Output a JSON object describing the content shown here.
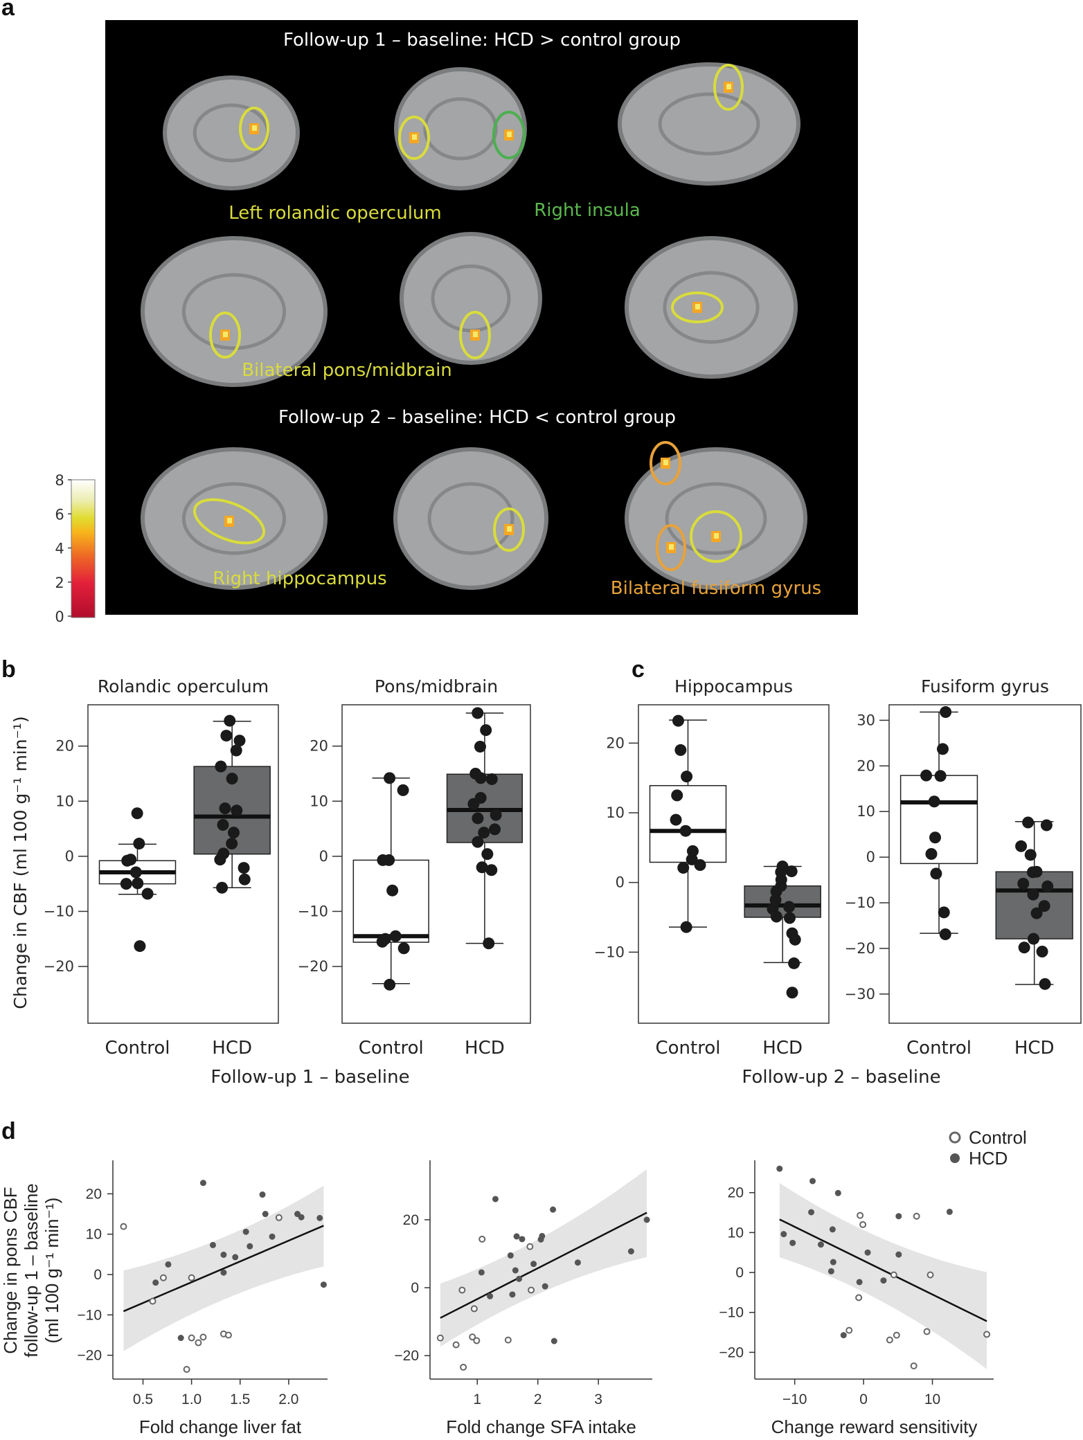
{
  "panel_labels": {
    "a": "a",
    "b": "b",
    "c": "c",
    "d": "d"
  },
  "panel_a": {
    "title_top": "Follow-up 1 – baseline: HCD > control group",
    "title_bottom": "Follow-up 2 – baseline: HCD < control group",
    "region_labels": [
      {
        "text": "Left rolandic operculum",
        "color": "#d9dc3c"
      },
      {
        "text": "Right insula",
        "color": "#5cb84e"
      },
      {
        "text": "Bilateral pons/midbrain",
        "color": "#d9dc3c"
      },
      {
        "text": "Right hippocampus",
        "color": "#d9dc3c"
      },
      {
        "text": "Bilateral fusiform gyrus",
        "color": "#e8a23a"
      }
    ],
    "colorbar": {
      "ticks": [
        "0",
        "2",
        "4",
        "6",
        "8"
      ],
      "range": [
        0,
        8
      ]
    },
    "colors": {
      "background": "#000000",
      "brain": "#a3a5a6",
      "yellow": "#d9dc3c",
      "green": "#4caf50",
      "orange": "#e8a23a"
    }
  },
  "panel_b": {
    "xlabel": "Follow-up 1 – baseline",
    "ylabel": "Change in CBF (ml 100 g⁻¹ min⁻¹)"
  },
  "panel_c": {
    "xlabel": "Follow-up 2 – baseline"
  },
  "panel_d": {
    "ylabel_lines": [
      "Change in pons CBF",
      "follow-up 1 – baseline",
      "(ml 100 g⁻¹ min⁻¹)"
    ],
    "legend": [
      {
        "label": "Control",
        "style": "open"
      },
      {
        "label": "HCD",
        "style": "filled"
      }
    ]
  },
  "chart_data": [
    {
      "type": "box",
      "title": "Rolandic operculum",
      "categories": [
        "Control",
        "HCD"
      ],
      "ylim": [
        -30.3,
        27.5
      ],
      "yticks": [
        -20,
        -10,
        0,
        10,
        20
      ],
      "series": [
        {
          "name": "Control",
          "fill": "#ffffff",
          "q1": -5.0,
          "median": -2.9,
          "q3": -0.8,
          "whisker_low": -6.9,
          "whisker_high": 2.2,
          "points": [
            7.8,
            2.3,
            -0.8,
            -0.6,
            -2.9,
            -4.9,
            -5.0,
            -6.8,
            -16.3
          ]
        },
        {
          "name": "HCD",
          "fill": "#686a6b",
          "q1": 0.4,
          "median": 7.2,
          "q3": 16.3,
          "whisker_low": -5.7,
          "whisker_high": 24.5,
          "points": [
            24.6,
            21.9,
            21.0,
            19.2,
            16.3,
            14.1,
            8.7,
            8.3,
            5.7,
            4.3,
            2.3,
            0.5,
            -0.6,
            -2.1,
            -4.2,
            -5.7
          ]
        }
      ]
    },
    {
      "type": "box",
      "title": "Pons/midbrain",
      "categories": [
        "Control",
        "HCD"
      ],
      "ylim": [
        -30.3,
        27.5
      ],
      "yticks": [
        -20,
        -10,
        0,
        10,
        20
      ],
      "series": [
        {
          "name": "Control",
          "fill": "#ffffff",
          "q1": -15.6,
          "median": -14.5,
          "q3": -0.7,
          "whisker_low": -23.1,
          "whisker_high": 14.2,
          "points": [
            14.2,
            12.0,
            -0.7,
            -0.7,
            -6.2,
            -14.5,
            -15.0,
            -15.5,
            -16.7,
            -23.3
          ]
        },
        {
          "name": "HCD",
          "fill": "#686a6b",
          "q1": 2.5,
          "median": 8.4,
          "q3": 14.9,
          "whisker_low": -15.8,
          "whisker_high": 26.0,
          "points": [
            26.0,
            22.9,
            19.9,
            15.0,
            14.0,
            14.2,
            10.6,
            9.5,
            7.5,
            6.9,
            4.9,
            4.3,
            2.6,
            0.4,
            -2.0,
            -2.5,
            -15.8
          ]
        }
      ]
    },
    {
      "type": "box",
      "title": "Hippocampus",
      "categories": [
        "Control",
        "HCD"
      ],
      "ylim": [
        -20.2,
        25.5
      ],
      "yticks": [
        -10,
        0,
        10,
        20
      ],
      "series": [
        {
          "name": "Control",
          "fill": "#ffffff",
          "q1": 2.9,
          "median": 7.4,
          "q3": 13.9,
          "whisker_low": -6.4,
          "whisker_high": 23.3,
          "points": [
            23.2,
            19.0,
            15.2,
            12.5,
            9.0,
            7.4,
            4.5,
            3.3,
            2.5,
            2.1,
            -6.4
          ]
        },
        {
          "name": "HCD",
          "fill": "#686a6b",
          "q1": -5.0,
          "median": -3.3,
          "q3": -0.5,
          "whisker_low": -11.5,
          "whisker_high": 2.3,
          "points": [
            2.3,
            1.5,
            1.6,
            0.4,
            -0.5,
            -1.3,
            -2.5,
            -3.5,
            -3.8,
            -4.9,
            -5.1,
            -7.3,
            -8.2,
            -11.6,
            -15.8
          ]
        }
      ]
    },
    {
      "type": "box",
      "title": "Fusiform gyrus",
      "categories": [
        "Control",
        "HCD"
      ],
      "ylim": [
        -36.4,
        33.4
      ],
      "yticks": [
        -30,
        -20,
        -10,
        0,
        10,
        20,
        30
      ],
      "series": [
        {
          "name": "Control",
          "fill": "#ffffff",
          "q1": -1.4,
          "median": 12.0,
          "q3": 17.9,
          "whisker_low": -16.7,
          "whisker_high": 31.8,
          "points": [
            31.8,
            23.7,
            17.8,
            17.9,
            12.2,
            4.3,
            0.7,
            -3.6,
            -12.1,
            -16.9
          ]
        },
        {
          "name": "HCD",
          "fill": "#686a6b",
          "q1": -17.9,
          "median": -7.3,
          "q3": -3.2,
          "whisker_low": -27.9,
          "whisker_high": 7.8,
          "points": [
            7.6,
            7.0,
            2.4,
            0.5,
            -3.2,
            -3.3,
            -5.8,
            -6.4,
            -8.2,
            -10.7,
            -12.3,
            -17.9,
            -19.8,
            -20.7,
            -27.8
          ]
        }
      ]
    },
    {
      "type": "scatter",
      "xlabel": "Fold change liver fat",
      "xlim": [
        0.19,
        2.4
      ],
      "ylim": [
        -25.9,
        28.3
      ],
      "xticks": [
        "0.5",
        "1.0",
        "1.5",
        "2.0"
      ],
      "yticks": [
        -20,
        -10,
        0,
        10,
        20
      ],
      "fit": {
        "x": [
          0.3,
          2.36
        ],
        "y": [
          -9.1,
          12.1
        ],
        "ci_low": [
          -19.0,
          2.0
        ],
        "ci_high": [
          1.0,
          22.0
        ]
      },
      "series": [
        {
          "name": "Control",
          "points": [
            [
              0.3,
              11.9
            ],
            [
              0.71,
              -0.8
            ],
            [
              0.6,
              -6.6
            ],
            [
              1.0,
              -0.8
            ],
            [
              1.0,
              -15.7
            ],
            [
              1.07,
              -16.9
            ],
            [
              1.12,
              -15.5
            ],
            [
              0.95,
              -23.5
            ],
            [
              1.33,
              -14.7
            ],
            [
              1.38,
              -15.0
            ],
            [
              1.9,
              14.1
            ]
          ]
        },
        {
          "name": "HCD",
          "points": [
            [
              1.12,
              22.7
            ],
            [
              0.76,
              2.5
            ],
            [
              0.63,
              -2.0
            ],
            [
              0.89,
              -15.7
            ],
            [
              1.22,
              7.3
            ],
            [
              1.33,
              4.9
            ],
            [
              1.33,
              0.5
            ],
            [
              1.45,
              4.3
            ],
            [
              1.56,
              10.6
            ],
            [
              1.6,
              7.0
            ],
            [
              1.73,
              19.8
            ],
            [
              1.76,
              15.0
            ],
            [
              1.83,
              9.4
            ],
            [
              2.09,
              15.0
            ],
            [
              2.13,
              14.2
            ],
            [
              2.32,
              14.0
            ],
            [
              2.36,
              -2.5
            ]
          ]
        }
      ]
    },
    {
      "type": "scatter",
      "xlabel": "Fold change SFA intake",
      "xlim": [
        0.22,
        3.89
      ],
      "ylim": [
        -26.9,
        37.5
      ],
      "xticks": [
        "1",
        "2",
        "3"
      ],
      "yticks": [
        -20,
        0,
        20
      ],
      "fit": {
        "x": [
          0.39,
          3.8
        ],
        "y": [
          -8.9,
          22.1
        ],
        "ci_low": [
          -17.4,
          9.0
        ],
        "ci_high": [
          1.2,
          34.9
        ]
      },
      "series": [
        {
          "name": "Control",
          "points": [
            [
              0.39,
              -14.8
            ],
            [
              0.65,
              -16.8
            ],
            [
              0.77,
              -23.4
            ],
            [
              0.75,
              -0.7
            ],
            [
              0.95,
              -6.2
            ],
            [
              1.08,
              14.3
            ],
            [
              0.92,
              -14.5
            ],
            [
              0.99,
              -15.6
            ],
            [
              1.51,
              -15.4
            ],
            [
              1.87,
              12.1
            ],
            [
              1.89,
              -0.7
            ]
          ]
        },
        {
          "name": "HCD",
          "points": [
            [
              1.3,
              26.1
            ],
            [
              1.07,
              4.5
            ],
            [
              1.21,
              -2.5
            ],
            [
              1.55,
              9.5
            ],
            [
              1.58,
              -2.0
            ],
            [
              1.63,
              5.1
            ],
            [
              1.65,
              15.1
            ],
            [
              1.69,
              2.6
            ],
            [
              1.74,
              14.3
            ],
            [
              1.93,
              7.0
            ],
            [
              2.05,
              14.2
            ],
            [
              2.07,
              15.2
            ],
            [
              2.12,
              0.4
            ],
            [
              2.25,
              23.0
            ],
            [
              2.27,
              -15.7
            ],
            [
              2.66,
              7.4
            ],
            [
              3.54,
              10.7
            ],
            [
              3.8,
              20.0
            ]
          ]
        }
      ]
    },
    {
      "type": "scatter",
      "xlabel": "Change reward sensitivity",
      "xlim": [
        -15.8,
        18.9
      ],
      "ylim": [
        -26.7,
        28.1
      ],
      "xticks": [
        "−10",
        "0",
        "10"
      ],
      "yticks": [
        -20,
        -10,
        0,
        10,
        20
      ],
      "fit": {
        "x": [
          -12.2,
          17.9
        ],
        "y": [
          13.3,
          -12.2
        ],
        "ci_low": [
          3.8,
          -24.2
        ],
        "ci_high": [
          22.4,
          0.1
        ]
      },
      "series": [
        {
          "name": "Control",
          "points": [
            [
              -0.5,
              14.3
            ],
            [
              -0.1,
              12.0
            ],
            [
              -0.7,
              -6.3
            ],
            [
              -2.1,
              -14.5
            ],
            [
              4.4,
              -0.6
            ],
            [
              4.8,
              -15.7
            ],
            [
              3.8,
              -16.9
            ],
            [
              7.7,
              14.1
            ],
            [
              9.7,
              -0.6
            ],
            [
              9.2,
              -14.8
            ],
            [
              7.3,
              -23.4
            ],
            [
              17.9,
              -15.5
            ]
          ]
        },
        {
          "name": "HCD",
          "points": [
            [
              -12.2,
              26.0
            ],
            [
              -11.6,
              9.6
            ],
            [
              -10.3,
              7.4
            ],
            [
              -7.4,
              22.9
            ],
            [
              -7.6,
              15.1
            ],
            [
              -6.2,
              7.0
            ],
            [
              -4.5,
              10.8
            ],
            [
              -3.7,
              19.9
            ],
            [
              -4.4,
              2.6
            ],
            [
              -4.7,
              0.3
            ],
            [
              -2.9,
              -15.7
            ],
            [
              -0.6,
              -2.4
            ],
            [
              0.6,
              5.0
            ],
            [
              2.9,
              -2.0
            ],
            [
              5.1,
              14.1
            ],
            [
              5.1,
              4.5
            ],
            [
              12.5,
              15.2
            ]
          ]
        }
      ]
    }
  ]
}
